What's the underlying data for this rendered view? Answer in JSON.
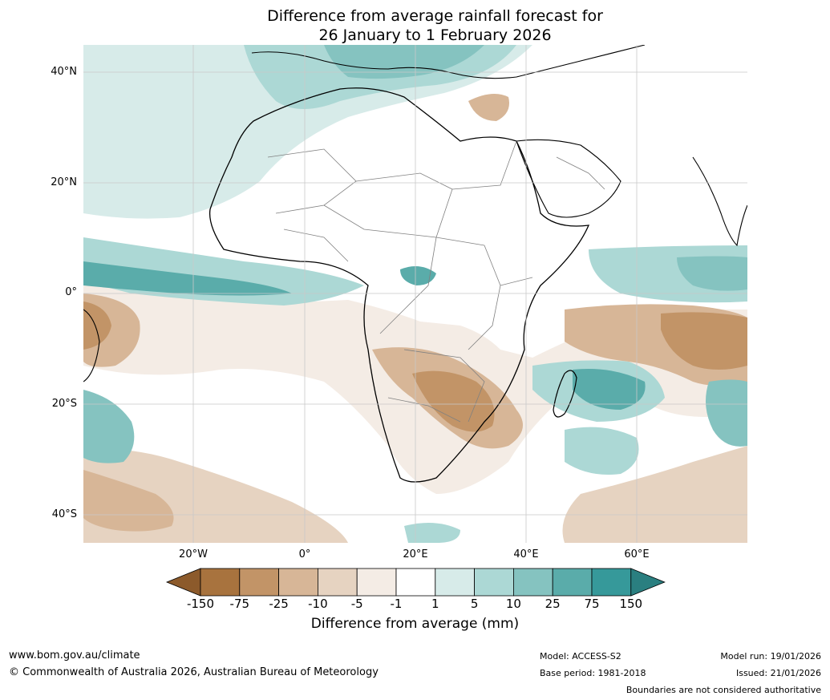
{
  "title": {
    "line1": "Difference from average rainfall forecast for",
    "line2": "26 January to 1 February 2026"
  },
  "map": {
    "lat_labels": [
      "40°N",
      "20°N",
      "0°",
      "20°S",
      "40°S"
    ],
    "lon_labels": [
      "20°W",
      "0°",
      "20°E",
      "40°E",
      "60°E"
    ],
    "region": "Africa and surrounding oceans"
  },
  "legend": {
    "title": "Difference from average (mm)",
    "ticks": [
      "-150",
      "-75",
      "-25",
      "-10",
      "-5",
      "-1",
      "1",
      "5",
      "10",
      "25",
      "75",
      "150"
    ],
    "colors": [
      "#8c5a2b",
      "#a8733e",
      "#c29467",
      "#d7b697",
      "#e6d3c1",
      "#f4ece5",
      "#ffffff",
      "#d7ebe9",
      "#acd8d5",
      "#85c3c0",
      "#5aacaa",
      "#36999a",
      "#2a7f80"
    ]
  },
  "footer": {
    "website": "www.bom.gov.au/climate",
    "copyright": "© Commonwealth of Australia 2026, Australian Bureau of Meteorology",
    "model": "Model: ACCESS-S2",
    "base_period": "Base period: 1981-2018",
    "model_run": "Model run: 19/01/2026",
    "issued": "Issued: 21/01/2026",
    "disclaimer": "Boundaries are not considered authoritative"
  }
}
